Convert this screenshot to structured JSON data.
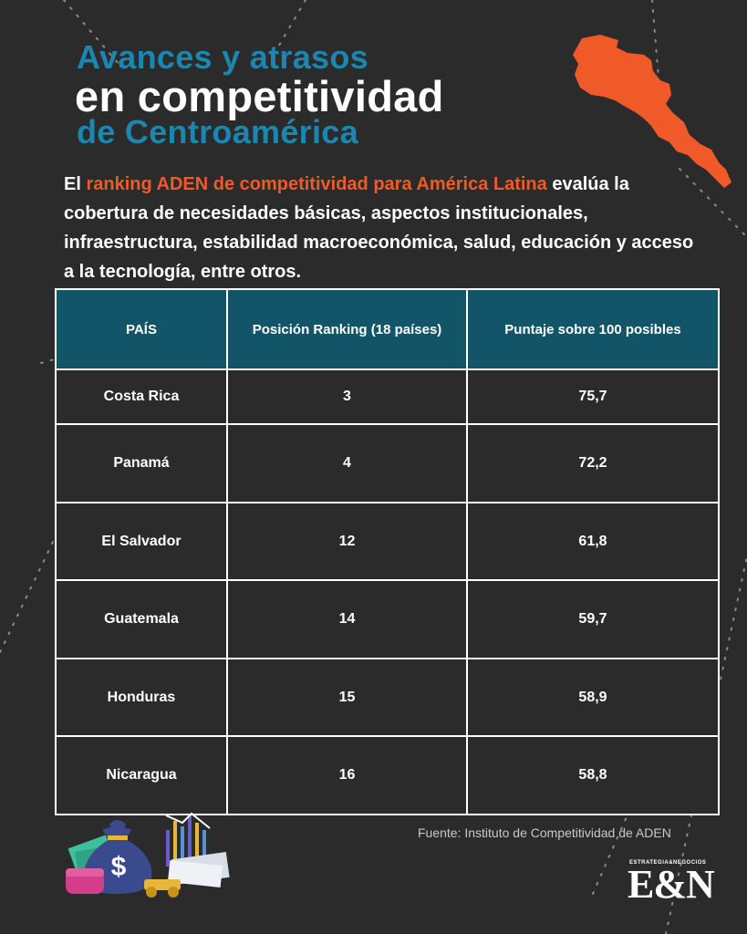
{
  "title": {
    "line1": "Avances y atrasos",
    "line2": "en competitividad",
    "line3": "de Centroamérica"
  },
  "intro": {
    "prefix": "El ",
    "highlight": "ranking ADEN de competitividad para América Latina",
    "rest": " evalúa la cobertura de necesidades básicas, aspectos institucionales, infraestructura, estabilidad macroeconómica, salud, educación y acceso a la tecnología, entre otros."
  },
  "table": {
    "headers": [
      "PAÍS",
      "Posición Ranking (18 países)",
      "Puntaje sobre 100 posibles"
    ],
    "rows": [
      [
        "Costa Rica",
        "3",
        "75,7"
      ],
      [
        "Panamá",
        "4",
        "72,2"
      ],
      [
        "El Salvador",
        "12",
        "61,8"
      ],
      [
        "Guatemala",
        "14",
        "59,7"
      ],
      [
        "Honduras",
        "15",
        "58,9"
      ],
      [
        "Nicaragua",
        "16",
        "58,8"
      ]
    ]
  },
  "source": "Fuente: Instituto de Competitividad de ADEN",
  "logo": {
    "tagline": "ESTRATEGIA&NEGOCIOS",
    "mark": "E&N"
  },
  "money_icon_symbol": "$",
  "colors": {
    "background": "#2b2b2b",
    "title_blue": "#1b86b0",
    "accent_orange": "#f05a28",
    "header_teal": "#135568"
  }
}
